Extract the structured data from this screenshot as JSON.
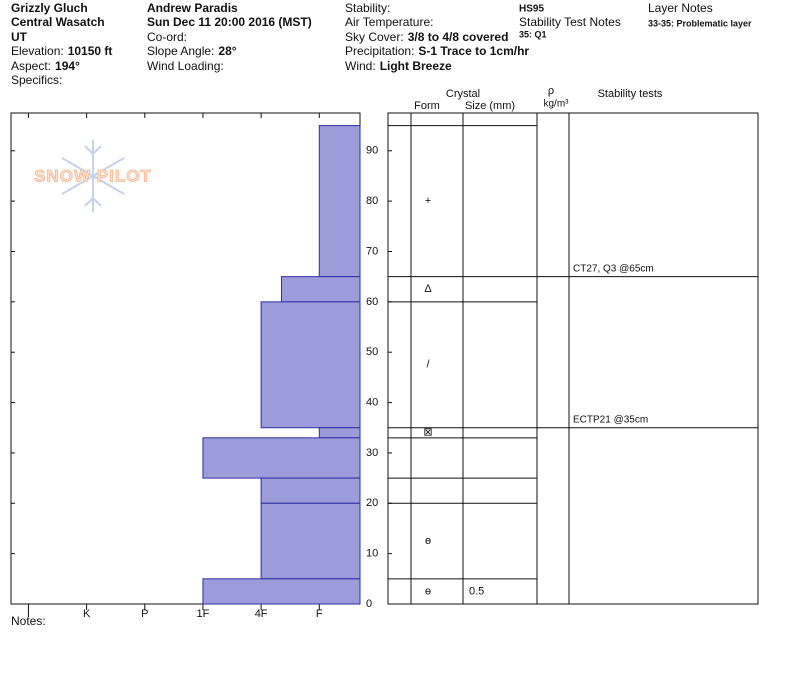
{
  "header": {
    "site": "Grizzly Gluch",
    "range": "Central Wasatch",
    "state": "UT",
    "elevation": {
      "label": "Elevation:",
      "value": "10150 ft"
    },
    "aspect": {
      "label": "Aspect:",
      "value": "194°"
    },
    "specifics": {
      "label": "Specifics:"
    },
    "observer": "Andrew Paradis",
    "datetime": "Sun Dec 11 20:00 2016 (MST)",
    "coord": {
      "label": "Co-ord:"
    },
    "slope": {
      "label": "Slope Angle:",
      "value": "28°"
    },
    "wind_loading": {
      "label": "Wind Loading:"
    },
    "stability": {
      "label": "Stability:"
    },
    "air_temperature": {
      "label": "Air Temperature:"
    },
    "sky_cover": {
      "label": "Sky Cover:",
      "value": "3/8 to 4/8 covered"
    },
    "precipitation": {
      "label": "Precipitation:",
      "value": "S-1 Trace to 1cm/hr"
    },
    "wind": {
      "label": "Wind:",
      "value": "Light Breeze"
    },
    "hs": "HS95",
    "stability_test_notes": {
      "label": "Stability Test Notes",
      "value": "35: Q1"
    },
    "layer_notes": {
      "label": "Layer Notes",
      "value": "33-35: Problematic layer"
    }
  },
  "logo": "SNOW PILOT",
  "notes": "Notes:",
  "chart_data": {
    "type": "snow_profile",
    "ylim": [
      0,
      97.5
    ],
    "yticks": [
      0,
      10,
      20,
      30,
      40,
      50,
      60,
      70,
      80,
      90
    ],
    "xlim": [
      6.3,
      0.3
    ],
    "xticks": [
      {
        "value": 6,
        "label": "I"
      },
      {
        "value": 5,
        "label": "K"
      },
      {
        "value": 4,
        "label": "P"
      },
      {
        "value": 3,
        "label": "1F"
      },
      {
        "value": 2,
        "label": "4F"
      },
      {
        "value": 1,
        "label": "F"
      }
    ],
    "bar_color": "#9c9cdb",
    "edge_color": "#2e2ea6",
    "columns": {
      "crystal": "Crystal",
      "form": "Form",
      "size": "Size (mm)",
      "rho": "ρ",
      "density_unit": "kg/m³",
      "tests": "Stability tests"
    },
    "layers": [
      {
        "top": 95,
        "bottom": 65,
        "hardness": 1,
        "form": "+"
      },
      {
        "top": 65,
        "bottom": 60,
        "hardness": 1.65,
        "form": "Δ"
      },
      {
        "top": 60,
        "bottom": 35,
        "hardness": 2,
        "form": "/"
      },
      {
        "top": 35,
        "bottom": 33,
        "hardness": 1,
        "form": "⊠"
      },
      {
        "top": 33,
        "bottom": 25,
        "hardness": 3
      },
      {
        "top": 25,
        "bottom": 20,
        "hardness": 2
      },
      {
        "top": 20,
        "bottom": 5,
        "hardness": 2,
        "form": "ɵ"
      },
      {
        "top": 5,
        "bottom": 0,
        "hardness": 3,
        "form": "ɵ",
        "size": 0.5
      }
    ],
    "stability_tests": [
      {
        "label": "CT27, Q3 @65cm",
        "depth": 65
      },
      {
        "label": "ECTP21 @35cm",
        "depth": 35
      }
    ]
  }
}
